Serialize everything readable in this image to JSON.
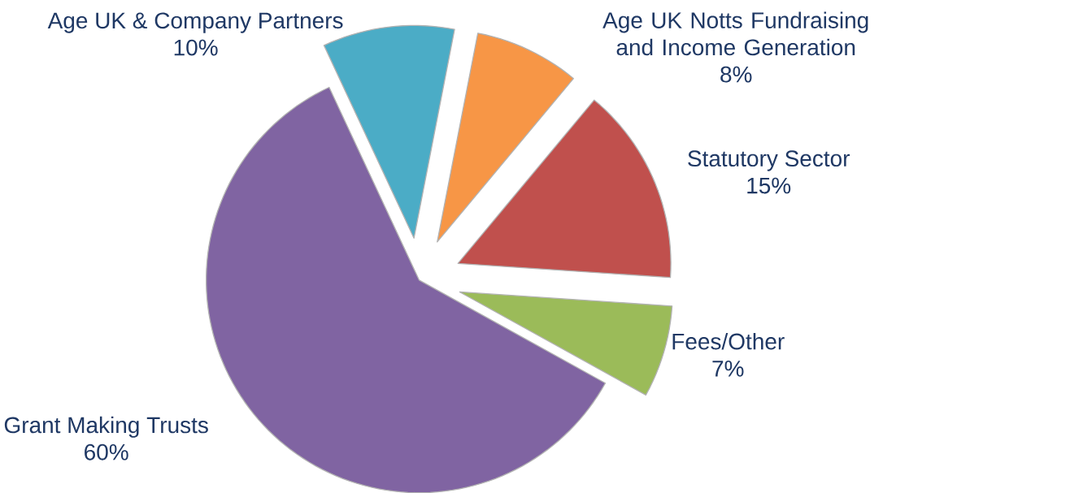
{
  "chart_data": {
    "type": "pie",
    "categories": [
      "Age UK & Company Partners",
      "Age UK Notts Fundraising and Income Generation",
      "Statutory Sector",
      "Fees/Other",
      "Grant Making Trusts"
    ],
    "values": [
      10,
      8,
      15,
      7,
      60
    ],
    "value_labels": [
      "10%",
      "8%",
      "15%",
      "7%",
      "60%"
    ],
    "colors": [
      "#4bacc6",
      "#f79646",
      "#c0504d",
      "#9bbb59",
      "#8064a2"
    ]
  }
}
